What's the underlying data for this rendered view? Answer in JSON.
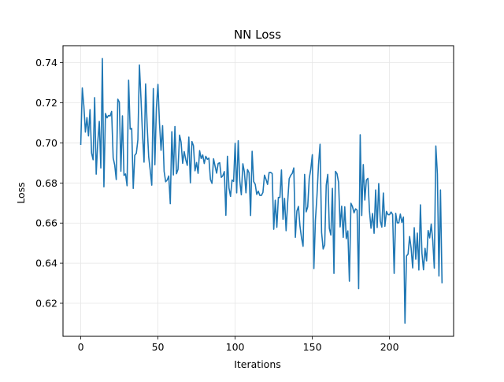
{
  "chart_data": {
    "type": "line",
    "title": "NN Loss",
    "xlabel": "Iterations",
    "ylabel": "Loss",
    "xlim": [
      -11.5,
      241.5
    ],
    "ylim": [
      0.6035,
      0.7485
    ],
    "xticks": [
      0,
      50,
      100,
      150,
      200
    ],
    "yticks": [
      0.62,
      0.64,
      0.66,
      0.68,
      0.7,
      0.72,
      0.74
    ],
    "ytick_labels": [
      "0.62",
      "0.64",
      "0.66",
      "0.68",
      "0.70",
      "0.72",
      "0.74"
    ],
    "grid": true,
    "line_color": "#1f77b4",
    "series": [
      {
        "values": [
          0.6993,
          0.7274,
          0.7185,
          0.7054,
          0.7126,
          0.7035,
          0.7166,
          0.6949,
          0.6916,
          0.7226,
          0.6844,
          0.7001,
          0.7107,
          0.6875,
          0.7421,
          0.6781,
          0.7147,
          0.7125,
          0.7137,
          0.7134,
          0.7157,
          0.6925,
          0.6889,
          0.6817,
          0.7218,
          0.7203,
          0.6859,
          0.7135,
          0.6838,
          0.6845,
          0.6786,
          0.7313,
          0.7069,
          0.7072,
          0.6773,
          0.6938,
          0.6948,
          0.7015,
          0.7389,
          0.7223,
          0.7042,
          0.6904,
          0.7294,
          0.7086,
          0.6931,
          0.6863,
          0.6789,
          0.7271,
          0.6891,
          0.7175,
          0.7292,
          0.7098,
          0.6963,
          0.7086,
          0.6858,
          0.6806,
          0.6815,
          0.6835,
          0.6697,
          0.7056,
          0.684,
          0.7082,
          0.6846,
          0.6868,
          0.7039,
          0.7003,
          0.6898,
          0.6957,
          0.6917,
          0.6888,
          0.7029,
          0.6801,
          0.7007,
          0.6986,
          0.6861,
          0.6902,
          0.6848,
          0.6961,
          0.6922,
          0.694,
          0.6897,
          0.6933,
          0.6918,
          0.6924,
          0.6817,
          0.6798,
          0.6921,
          0.6884,
          0.6849,
          0.6897,
          0.6901,
          0.6828,
          0.6836,
          0.6857,
          0.6639,
          0.6933,
          0.6775,
          0.6733,
          0.6815,
          0.6808,
          0.6998,
          0.6751,
          0.7011,
          0.6811,
          0.6741,
          0.6896,
          0.6854,
          0.6751,
          0.6867,
          0.6851,
          0.6638,
          0.6958,
          0.6807,
          0.6794,
          0.6743,
          0.6759,
          0.6738,
          0.6738,
          0.6753,
          0.6839,
          0.6818,
          0.6793,
          0.6852,
          0.6853,
          0.6847,
          0.6569,
          0.6714,
          0.6579,
          0.6728,
          0.6728,
          0.6865,
          0.6619,
          0.6723,
          0.6562,
          0.6702,
          0.6821,
          0.6838,
          0.6848,
          0.6875,
          0.6529,
          0.666,
          0.6683,
          0.6584,
          0.6526,
          0.6484,
          0.6843,
          0.6656,
          0.6681,
          0.6823,
          0.6869,
          0.6941,
          0.6373,
          0.6615,
          0.6736,
          0.6891,
          0.6993,
          0.6553,
          0.6471,
          0.6491,
          0.6789,
          0.6843,
          0.6574,
          0.654,
          0.6773,
          0.6349,
          0.6858,
          0.6846,
          0.6803,
          0.6581,
          0.6684,
          0.6529,
          0.6681,
          0.6522,
          0.6561,
          0.631,
          0.6699,
          0.6682,
          0.6651,
          0.6671,
          0.6664,
          0.6273,
          0.7041,
          0.6638,
          0.6892,
          0.6715,
          0.6815,
          0.6823,
          0.6661,
          0.6574,
          0.6648,
          0.6549,
          0.6765,
          0.6578,
          0.6797,
          0.661,
          0.658,
          0.675,
          0.6584,
          0.6658,
          0.6642,
          0.6642,
          0.6655,
          0.6643,
          0.6349,
          0.6649,
          0.6601,
          0.6601,
          0.6645,
          0.6603,
          0.663,
          0.6101,
          0.6436,
          0.6445,
          0.6533,
          0.6474,
          0.6376,
          0.6577,
          0.642,
          0.655,
          0.6366,
          0.6691,
          0.645,
          0.6367,
          0.6474,
          0.6411,
          0.6563,
          0.6526,
          0.6595,
          0.6513,
          0.6375,
          0.6985,
          0.6845,
          0.6336,
          0.6765,
          0.6303
        ]
      }
    ]
  }
}
